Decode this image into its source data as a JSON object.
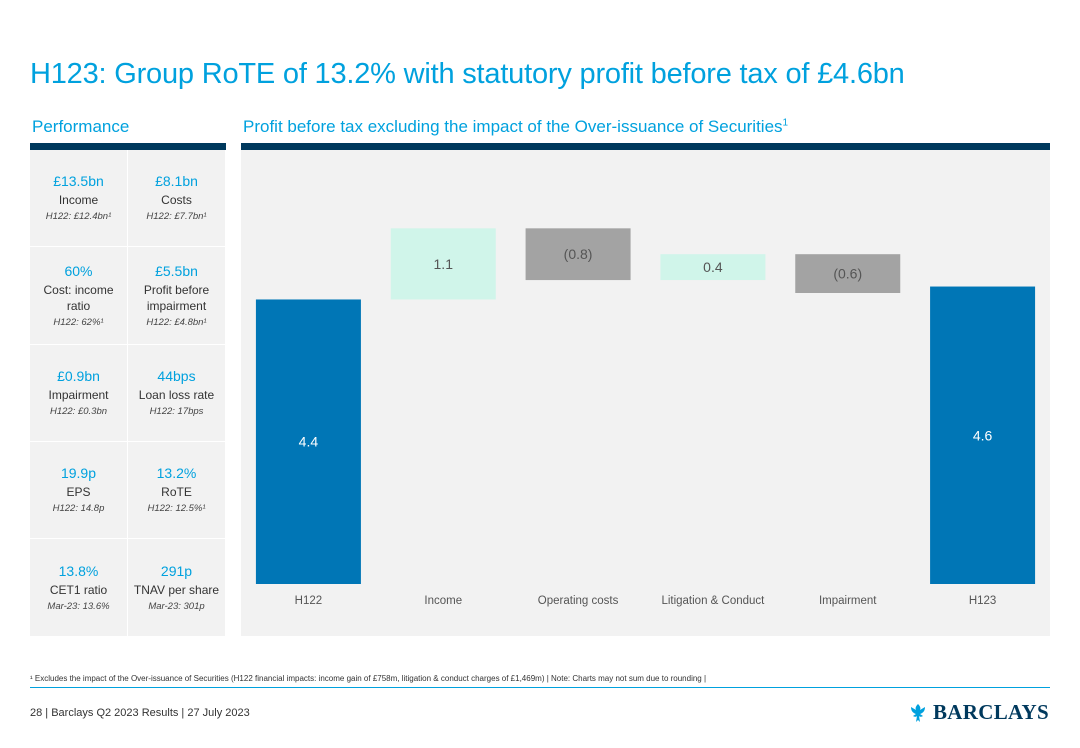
{
  "title": "H123: Group RoTE of 13.2% with statutory profit before tax of £4.6bn",
  "performance_label": "Performance",
  "chart_section_label": "Profit before tax excluding the impact of the Over-issuance of Securities",
  "chart_section_sup": "1",
  "kpis": [
    {
      "value": "£13.5bn",
      "label": "Income",
      "prior": "H122: £12.4bn¹"
    },
    {
      "value": "£8.1bn",
      "label": "Costs",
      "prior": "H122: £7.7bn¹"
    },
    {
      "value": "60%",
      "label": "Cost: income ratio",
      "prior": "H122: 62%¹"
    },
    {
      "value": "£5.5bn",
      "label": "Profit before impairment",
      "prior": "H122: £4.8bn¹"
    },
    {
      "value": "£0.9bn",
      "label": "Impairment",
      "prior": "H122: £0.3bn"
    },
    {
      "value": "44bps",
      "label": "Loan loss rate",
      "prior": "H122: 17bps"
    },
    {
      "value": "19.9p",
      "label": "EPS",
      "prior": "H122: 14.8p"
    },
    {
      "value": "13.2%",
      "label": "RoTE",
      "prior": "H122: 12.5%¹"
    },
    {
      "value": "13.8%",
      "label": "CET1 ratio",
      "prior": "Mar-23: 13.6%"
    },
    {
      "value": "291p",
      "label": "TNAV per share",
      "prior": "Mar-23: 301p"
    }
  ],
  "chart_data": {
    "type": "waterfall",
    "categories": [
      "H122",
      "Income",
      "Operating costs",
      "Litigation & Conduct",
      "Impairment",
      "H123"
    ],
    "values": [
      4.4,
      1.1,
      -0.8,
      0.4,
      -0.6,
      4.6
    ],
    "value_labels": [
      "4.4",
      "1.1",
      "(0.8)",
      "0.4",
      "(0.6)",
      "4.6"
    ],
    "kinds": [
      "total",
      "delta",
      "delta",
      "delta",
      "delta",
      "total"
    ],
    "title": "Profit before tax excluding the impact of the Over-issuance of Securities",
    "ylabel": "",
    "ylim": [
      0,
      6.0
    ],
    "colors": {
      "total": "#0076b6",
      "increase": "#d0f5ea",
      "decrease": "#a3a3a3",
      "label_on_total": "#ffffff",
      "label_on_delta": "#555555",
      "category": "#555555"
    }
  },
  "footnote": "¹ Excludes the impact of the Over-issuance of Securities (H122 financial impacts: income gain of £758m, litigation & conduct charges of £1,469m) | Note: Charts may not sum due to rounding |",
  "footer": "28 | Barclays Q2 2023 Results | 27 July 2023",
  "logo_text": "BARCLAYS",
  "logo_icon": "eagle-icon"
}
